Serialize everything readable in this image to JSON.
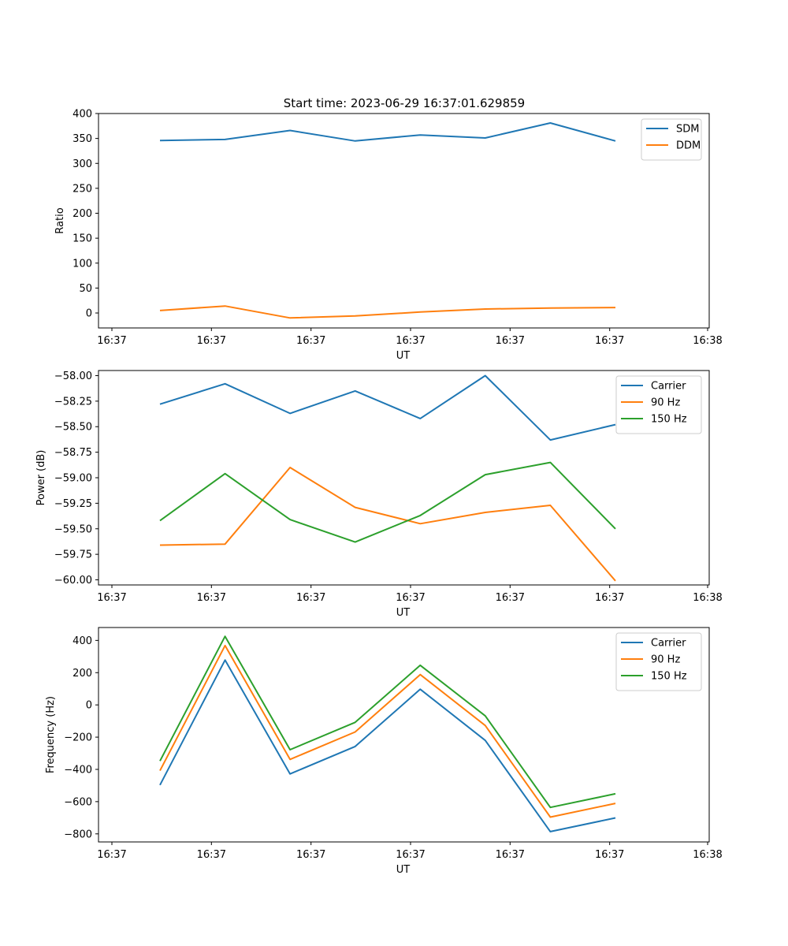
{
  "title": "Start time: 2023-06-29 16:37:01.629859",
  "chart_data": [
    {
      "type": "line",
      "xlabel": "UT",
      "ylabel": "Ratio",
      "x_tick_labels": [
        "16:37",
        "16:37",
        "16:37",
        "16:37",
        "16:37",
        "16:37",
        "16:38"
      ],
      "x_index": [
        0,
        1,
        2,
        3,
        4,
        5,
        6,
        7
      ],
      "ylim": [
        -30,
        400
      ],
      "yticks": [
        0,
        50,
        100,
        150,
        200,
        250,
        300,
        350,
        400
      ],
      "ytick_labels": [
        "0",
        "50",
        "100",
        "150",
        "200",
        "250",
        "300",
        "350",
        "400"
      ],
      "legend": "top-right",
      "grid": false,
      "series": [
        {
          "name": "SDM",
          "color": "#1f77b4",
          "values": [
            346,
            348,
            366,
            345,
            357,
            351,
            381,
            345
          ]
        },
        {
          "name": "DDM",
          "color": "#ff7f0e",
          "values": [
            5,
            14,
            -10,
            -6,
            2,
            8,
            10,
            11
          ]
        }
      ]
    },
    {
      "type": "line",
      "xlabel": "UT",
      "ylabel": "Power (dB)",
      "x_tick_labels": [
        "16:37",
        "16:37",
        "16:37",
        "16:37",
        "16:37",
        "16:37",
        "16:38"
      ],
      "x_index": [
        0,
        1,
        2,
        3,
        4,
        5,
        6,
        7
      ],
      "ylim": [
        -60.05,
        -57.95
      ],
      "yticks": [
        -60.0,
        -59.75,
        -59.5,
        -59.25,
        -59.0,
        -58.75,
        -58.5,
        -58.25,
        -58.0
      ],
      "ytick_labels": [
        "−60.00",
        "−59.75",
        "−59.50",
        "−59.25",
        "−59.00",
        "−58.75",
        "−58.50",
        "−58.25",
        "−58.00"
      ],
      "legend": "top-right",
      "grid": false,
      "series": [
        {
          "name": "Carrier",
          "color": "#1f77b4",
          "values": [
            -58.28,
            -58.08,
            -58.37,
            -58.15,
            -58.42,
            -58.0,
            -58.63,
            -58.48
          ]
        },
        {
          "name": "90 Hz",
          "color": "#ff7f0e",
          "values": [
            -59.66,
            -59.65,
            -58.9,
            -59.29,
            -59.45,
            -59.34,
            -59.27,
            -60.01
          ]
        },
        {
          "name": "150 Hz",
          "color": "#2ca02c",
          "values": [
            -59.42,
            -58.96,
            -59.41,
            -59.63,
            -59.37,
            -58.97,
            -58.85,
            -59.5
          ]
        }
      ]
    },
    {
      "type": "line",
      "xlabel": "UT",
      "ylabel": "Frequency (Hz)",
      "x_tick_labels": [
        "16:37",
        "16:37",
        "16:37",
        "16:37",
        "16:37",
        "16:37",
        "16:38"
      ],
      "x_index": [
        0,
        1,
        2,
        3,
        4,
        5,
        6,
        7
      ],
      "ylim": [
        -850,
        480
      ],
      "yticks": [
        -800,
        -600,
        -400,
        -200,
        0,
        200,
        400
      ],
      "ytick_labels": [
        "−800",
        "−600",
        "−400",
        "−200",
        "0",
        "200",
        "400"
      ],
      "legend": "top-right",
      "grid": false,
      "series": [
        {
          "name": "Carrier",
          "color": "#1f77b4",
          "values": [
            -497,
            278,
            -428,
            -258,
            97,
            -220,
            -786,
            -701
          ]
        },
        {
          "name": "90 Hz",
          "color": "#ff7f0e",
          "values": [
            -408,
            368,
            -338,
            -168,
            188,
            -128,
            -696,
            -611
          ]
        },
        {
          "name": "150 Hz",
          "color": "#2ca02c",
          "values": [
            -348,
            425,
            -278,
            -108,
            246,
            -68,
            -636,
            -551
          ]
        }
      ]
    }
  ]
}
